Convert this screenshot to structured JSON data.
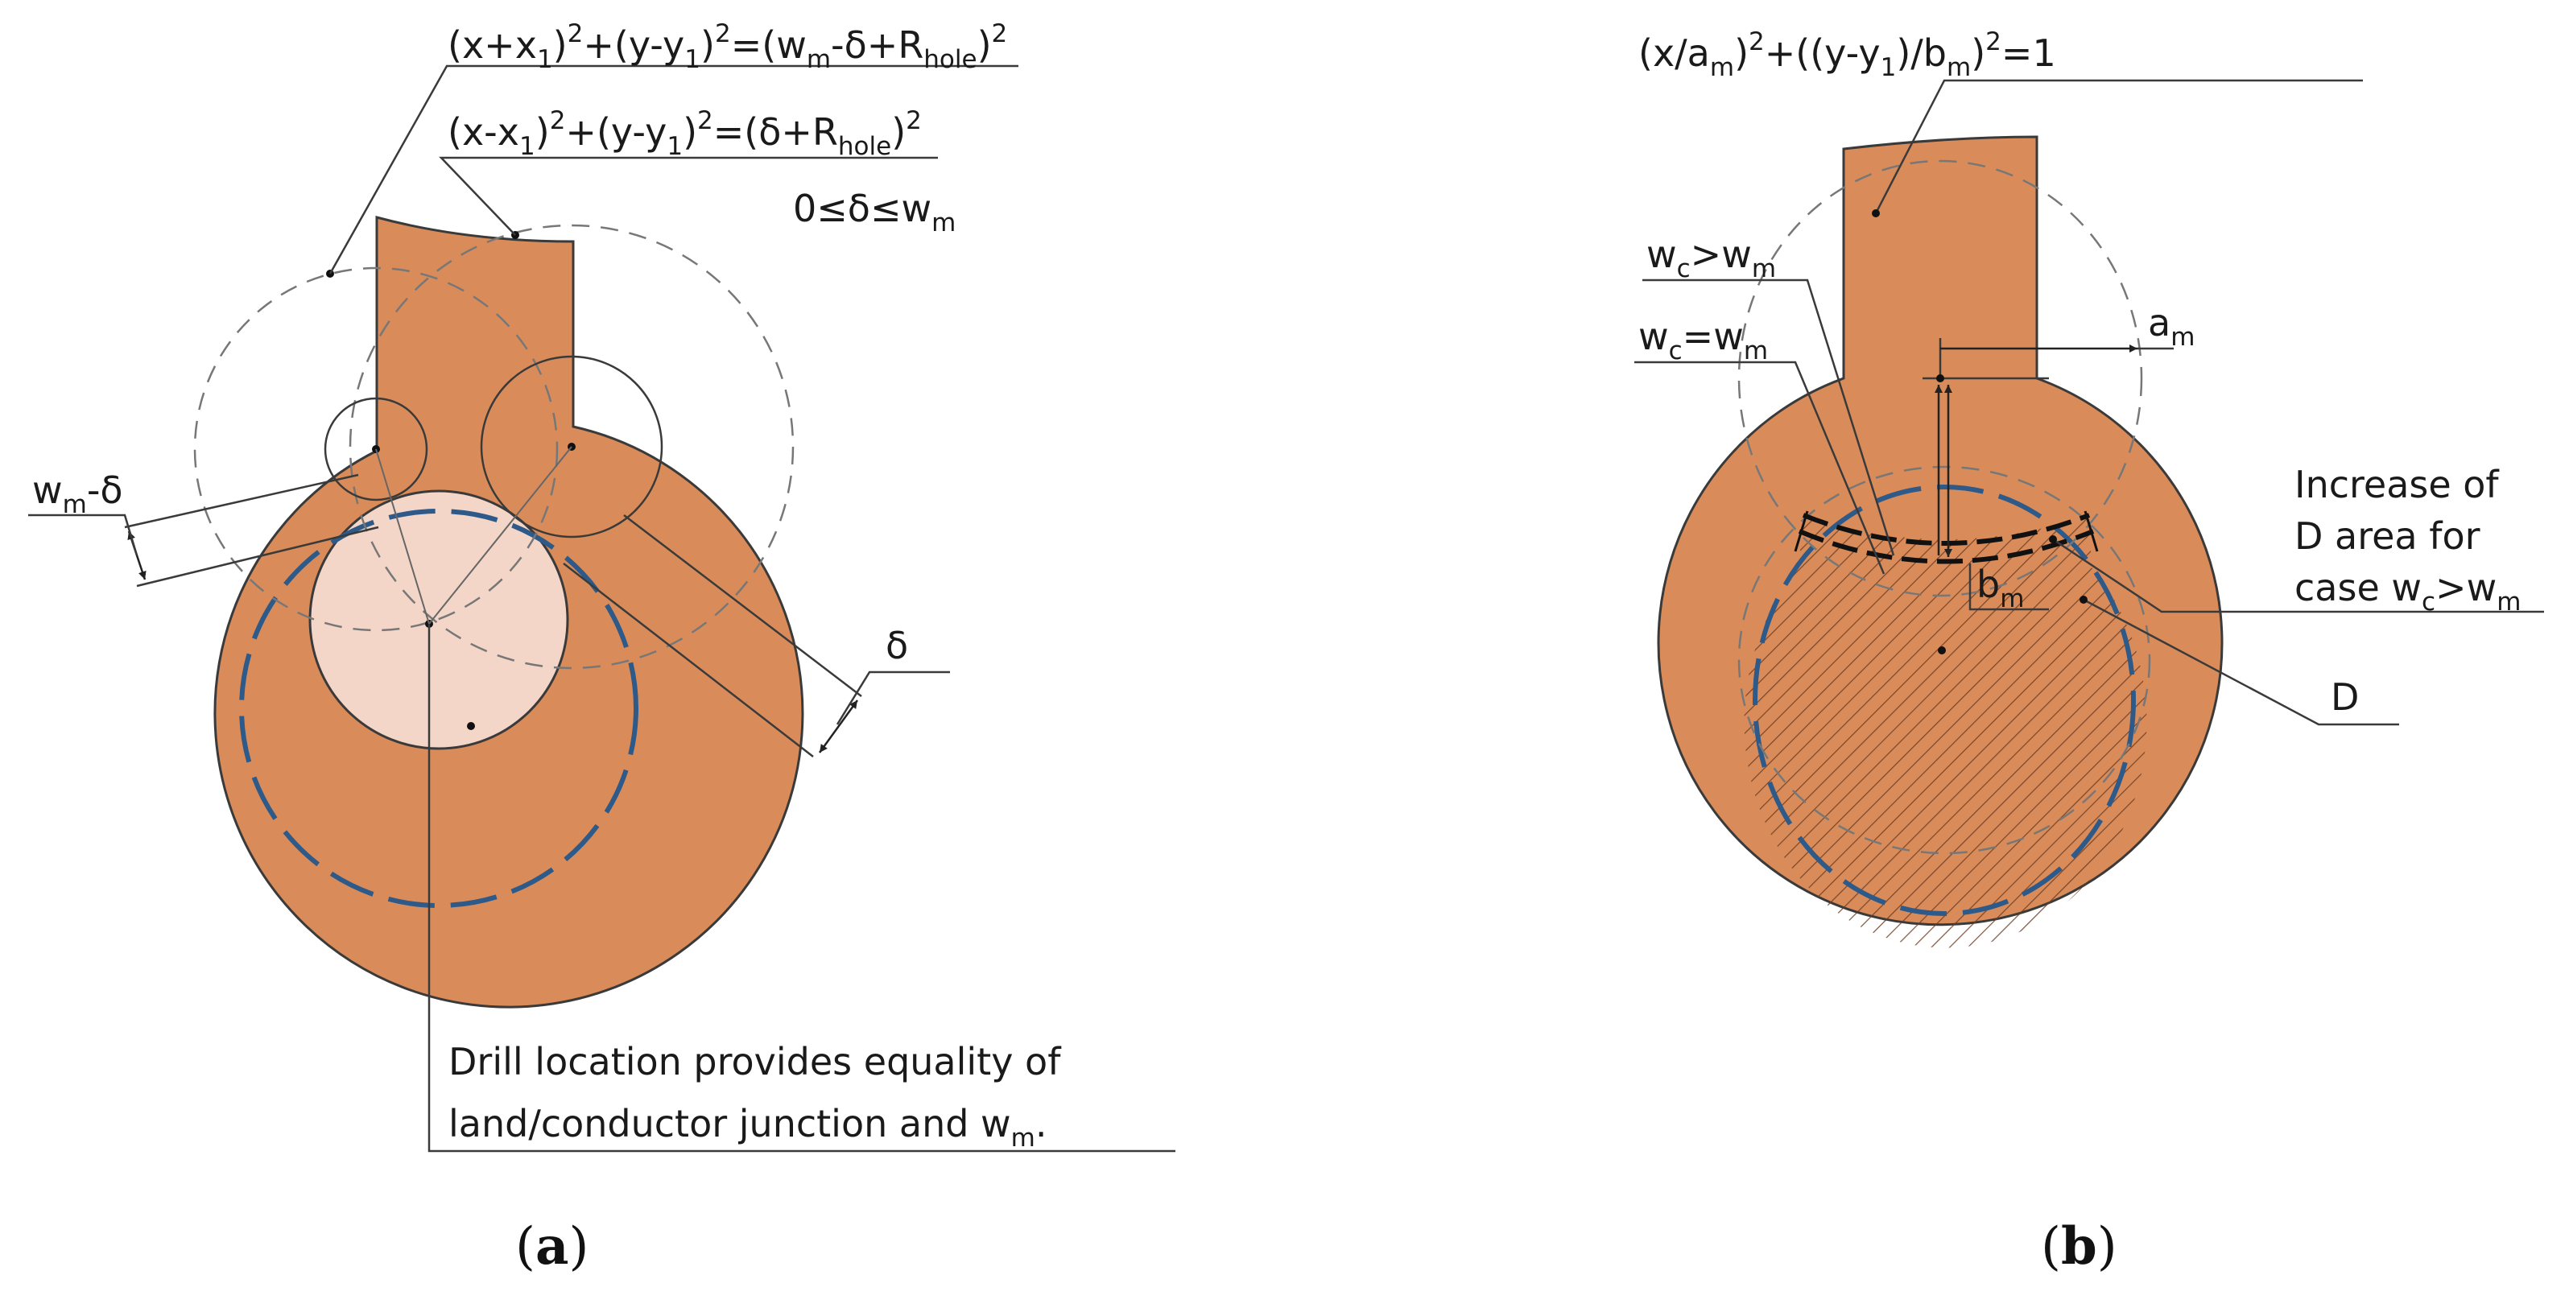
{
  "panel_a": {
    "eq1": {
      "p1": "(x+x",
      "s1": "1",
      "p2": ")",
      "e1": "2",
      "p3": "+(y-y",
      "s2": "1",
      "p4": ")",
      "e2": "2",
      "p5": "=(w",
      "s3": "m",
      "p6": "-δ+R",
      "s4": "hole",
      "p7": ")",
      "e3": "2"
    },
    "eq2": {
      "p1": "(x-x",
      "s1": "1",
      "p2": ")",
      "e1": "2",
      "p3": "+(y-y",
      "s2": "1",
      "p4": ")",
      "e2": "2",
      "p5": "=(δ+R",
      "s3": "hole",
      "p6": ")",
      "e3": "2"
    },
    "cond": {
      "p1": "0≤δ≤w",
      "s1": "m"
    },
    "wm_delta": {
      "p1": "w",
      "s1": "m",
      "p2": "-δ"
    },
    "delta": "δ",
    "note_line1": "Drill location provides equality of",
    "note_line2": {
      "p1": "land/conductor junction and w",
      "s1": "m",
      "p2": "."
    },
    "caption": {
      "open": "(",
      "letter": "a",
      "close": ")"
    }
  },
  "panel_b": {
    "eq": {
      "p1": "(x/a",
      "s1": "m",
      "p2": ")",
      "e1": "2",
      "p3": "+((y-y",
      "s2": "1",
      "p4": ")/b",
      "s3": "m",
      "p5": ")",
      "e2": "2",
      "p6": "=1"
    },
    "wc_gt": {
      "p1": "w",
      "s1": "c",
      "p2": ">w",
      "s2": "m"
    },
    "wc_eq": {
      "p1": "w",
      "s1": "c",
      "p2": "=w",
      "s2": "m"
    },
    "am": {
      "p1": "a",
      "s1": "m"
    },
    "bm": {
      "p1": "b",
      "s1": "m"
    },
    "increase_line1": "Increase of",
    "increase_line2": "D area for",
    "increase_line3": {
      "p1": "case w",
      "s1": "c",
      "p2": ">w",
      "s2": "m"
    },
    "d_label": "D",
    "caption": {
      "open": "(",
      "letter": "b",
      "close": ")"
    }
  },
  "colors": {
    "copper": "#d98c5a",
    "drill": "#f3d6c7",
    "outline": "#3a3a3a",
    "blue_dash": "#2e5a8a",
    "dash_gray": "#777777"
  }
}
